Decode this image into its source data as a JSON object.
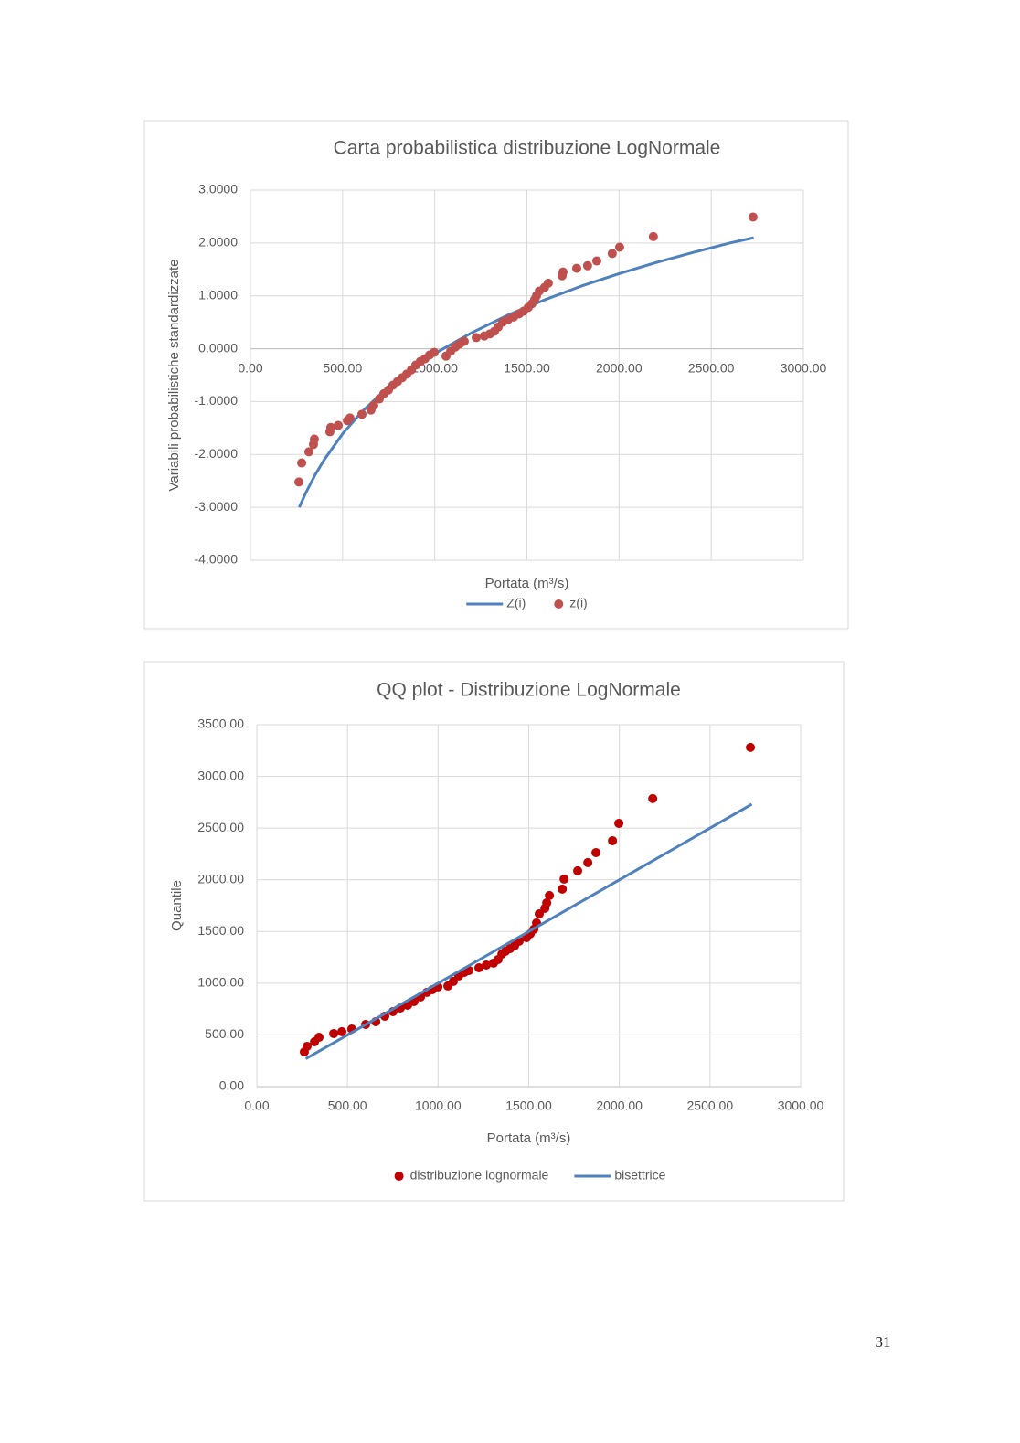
{
  "chart_data": [
    {
      "type": "scatter",
      "title": "Carta probabilistica distribuzione LogNormale",
      "x_label": "Portata (m³/s)",
      "y_label": "Variabili probabilistiche standardizzate",
      "xlim": [
        0,
        3000
      ],
      "ylim": [
        -4,
        3
      ],
      "xticks": [
        {
          "value": 0,
          "label": "0.00"
        },
        {
          "value": 500,
          "label": "500.00"
        },
        {
          "value": 1000,
          "label": "1000.00"
        },
        {
          "value": 1500,
          "label": "1500.00"
        },
        {
          "value": 2000,
          "label": "2000.00"
        },
        {
          "value": 2500,
          "label": "2500.00"
        },
        {
          "value": 3000,
          "label": "3000.00"
        }
      ],
      "yticks": [
        {
          "value": 3,
          "label": "3.0000"
        },
        {
          "value": 2,
          "label": "2.0000"
        },
        {
          "value": 1,
          "label": "1.0000"
        },
        {
          "value": 0,
          "label": "0.0000"
        },
        {
          "value": -1,
          "label": "-1.0000"
        },
        {
          "value": -2,
          "label": "-2.0000"
        },
        {
          "value": -3,
          "label": "-3.0000"
        },
        {
          "value": -4,
          "label": "-4.0000"
        }
      ],
      "grid": true,
      "series": [
        {
          "name": "Z(i)",
          "color": "#4f81bd",
          "mode": "line",
          "x": [
            265,
            300,
            350,
            400,
            500,
            600,
            700,
            800,
            900,
            1000,
            1200,
            1400,
            1600,
            1800,
            2000,
            2200,
            2400,
            2600,
            2730
          ],
          "values": [
            -3.0,
            -2.73,
            -2.39,
            -2.1,
            -1.61,
            -1.21,
            -0.88,
            -0.58,
            -0.33,
            -0.09,
            0.3,
            0.64,
            0.93,
            1.19,
            1.42,
            1.63,
            1.82,
            2.0,
            2.1
          ]
        },
        {
          "name": "z(i)",
          "color": "#c0504d",
          "mode": "markers",
          "x": [
            263,
            278,
            317,
            342,
            347,
            431,
            436,
            476,
            526,
            540,
            605,
            654,
            669,
            699,
            724,
            749,
            773,
            798,
            823,
            848,
            873,
            897,
            922,
            947,
            972,
            997,
            1061,
            1086,
            1111,
            1135,
            1160,
            1225,
            1269,
            1299,
            1324,
            1344,
            1368,
            1398,
            1428,
            1458,
            1482,
            1507,
            1527,
            1542,
            1552,
            1567,
            1596,
            1616,
            1691,
            1696,
            1770,
            1829,
            1879,
            1963,
            2003,
            2186,
            2727
          ],
          "values": [
            -2.52,
            -2.16,
            -1.95,
            -1.81,
            -1.71,
            -1.57,
            -1.49,
            -1.45,
            -1.36,
            -1.31,
            -1.24,
            -1.16,
            -1.07,
            -0.95,
            -0.85,
            -0.78,
            -0.69,
            -0.62,
            -0.55,
            -0.48,
            -0.4,
            -0.31,
            -0.24,
            -0.19,
            -0.12,
            -0.07,
            -0.14,
            -0.05,
            0.03,
            0.09,
            0.14,
            0.21,
            0.24,
            0.28,
            0.33,
            0.41,
            0.5,
            0.55,
            0.6,
            0.66,
            0.71,
            0.78,
            0.85,
            0.93,
            1.0,
            1.09,
            1.16,
            1.24,
            1.38,
            1.45,
            1.52,
            1.57,
            1.66,
            1.8,
            1.92,
            2.12,
            2.49
          ]
        }
      ]
    },
    {
      "type": "scatter",
      "title": "QQ plot - Distribuzione LogNormale",
      "x_label": "Portata (m³/s)",
      "y_label": "Quantile",
      "xlim": [
        0,
        3000
      ],
      "ylim": [
        0,
        3500
      ],
      "xticks": [
        {
          "value": 0,
          "label": "0.00"
        },
        {
          "value": 500,
          "label": "500.00"
        },
        {
          "value": 1000,
          "label": "1000.00"
        },
        {
          "value": 1500,
          "label": "1500.00"
        },
        {
          "value": 2000,
          "label": "2000.00"
        },
        {
          "value": 2500,
          "label": "2500.00"
        },
        {
          "value": 3000,
          "label": "3000.00"
        }
      ],
      "yticks": [
        {
          "value": 0,
          "label": "0.00"
        },
        {
          "value": 500,
          "label": "500.00"
        },
        {
          "value": 1000,
          "label": "1000.00"
        },
        {
          "value": 1500,
          "label": "1500.00"
        },
        {
          "value": 2000,
          "label": "2000.00"
        },
        {
          "value": 2500,
          "label": "2500.00"
        },
        {
          "value": 3000,
          "label": "3000.00"
        },
        {
          "value": 3500,
          "label": "3500.00"
        }
      ],
      "grid": true,
      "series": [
        {
          "name": "distribuzione lognormale",
          "color": "#c00000",
          "mode": "markers",
          "x": [
            262,
            277,
            318,
            343,
            424,
            469,
            524,
            600,
            656,
            706,
            751,
            792,
            832,
            867,
            903,
            938,
            968,
            999,
            1054,
            1084,
            1114,
            1145,
            1170,
            1225,
            1266,
            1306,
            1331,
            1352,
            1372,
            1397,
            1422,
            1447,
            1488,
            1508,
            1528,
            1543,
            1558,
            1589,
            1599,
            1614,
            1685,
            1695,
            1770,
            1826,
            1871,
            1962,
            1997,
            2184,
            2723
          ],
          "values": [
            336,
            389,
            433,
            477,
            513,
            531,
            557,
            601,
            628,
            681,
            725,
            760,
            787,
            822,
            866,
            911,
            937,
            964,
            973,
            1017,
            1070,
            1105,
            1123,
            1149,
            1176,
            1194,
            1229,
            1282,
            1309,
            1335,
            1362,
            1406,
            1441,
            1477,
            1521,
            1583,
            1671,
            1724,
            1777,
            1848,
            1910,
            2007,
            2087,
            2166,
            2263,
            2378,
            2546,
            2785,
            3280
          ]
        },
        {
          "name": "bisettrice",
          "color": "#4f81bd",
          "mode": "line",
          "x": [
            270,
            2730
          ],
          "values": [
            270,
            2730
          ]
        }
      ]
    }
  ],
  "page_number": "31"
}
